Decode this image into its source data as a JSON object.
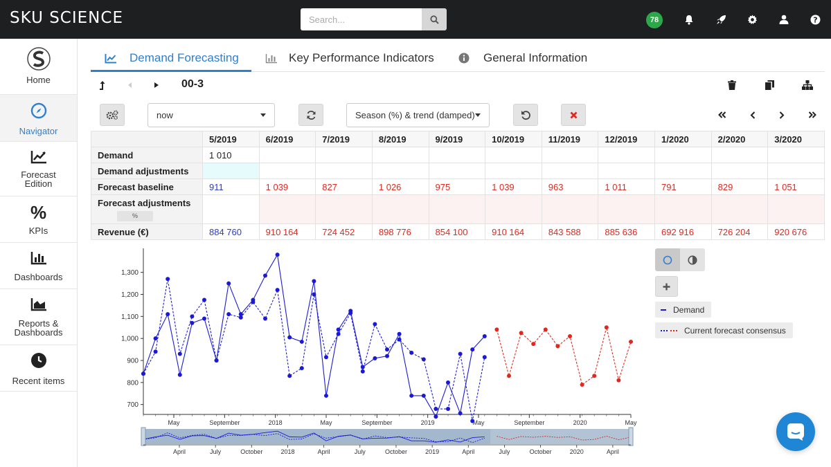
{
  "app": {
    "logo": "SKU SCIENCE",
    "search_placeholder": "Search...",
    "notification_count": "78"
  },
  "sidebar": {
    "items": [
      {
        "label": "Home",
        "icon": "logo-icon"
      },
      {
        "label": "Navigator",
        "icon": "compass-icon"
      },
      {
        "label": "Forecast Edition",
        "icon": "chart-line-icon"
      },
      {
        "label": "KPIs",
        "icon": "percent-icon"
      },
      {
        "label": "Dashboards",
        "icon": "bar-chart-icon"
      },
      {
        "label": "Reports & Dashboards",
        "icon": "area-chart-icon"
      },
      {
        "label": "Recent items",
        "icon": "clock-icon"
      }
    ]
  },
  "tabs": [
    {
      "label": "Demand Forecasting",
      "active": true
    },
    {
      "label": "Key Performance Indicators",
      "active": false
    },
    {
      "label": "General Information",
      "active": false
    }
  ],
  "item_code": "00-3",
  "controls": {
    "period_select": "now",
    "model_select": "Season (%) & trend (damped)"
  },
  "table": {
    "months": [
      "5/2019",
      "6/2019",
      "7/2019",
      "8/2019",
      "9/2019",
      "10/2019",
      "11/2019",
      "12/2019",
      "1/2020",
      "2/2020",
      "3/2020"
    ],
    "rows": {
      "demand": {
        "label": "Demand",
        "values": [
          "1 010",
          "",
          "",
          "",
          "",
          "",
          "",
          "",
          "",
          "",
          ""
        ]
      },
      "demand_adjustments": {
        "label": "Demand adjustments"
      },
      "forecast_baseline": {
        "label": "Forecast baseline",
        "values": [
          "911",
          "1 039",
          "827",
          "1 026",
          "975",
          "1 039",
          "963",
          "1 011",
          "791",
          "829",
          "1 051"
        ]
      },
      "forecast_adjustments": {
        "label": "Forecast adjustments",
        "chip": "%"
      },
      "revenue": {
        "label": "Revenue (€)",
        "values": [
          "884 760",
          "910 164",
          "724 452",
          "898 776",
          "854 100",
          "910 164",
          "843 588",
          "885 636",
          "692 916",
          "726 204",
          "920 676"
        ]
      }
    }
  },
  "legend": {
    "demand": "Demand",
    "consensus": "Current forecast consensus"
  },
  "colors": {
    "accent": "#2f7fd1",
    "demand": "#1a1ad6",
    "forecast": "#e2281e",
    "badge": "#2ca84a"
  },
  "chart_data": {
    "type": "line",
    "y_ticks": [
      "700",
      "800",
      "900",
      "1,000",
      "1,100",
      "1,200",
      "1,300"
    ],
    "ylim": [
      655,
      1390
    ],
    "x_labels": [
      "May",
      "September",
      "2018",
      "May",
      "September",
      "2019",
      "May",
      "September",
      "2020",
      "May"
    ],
    "nav_x_labels": [
      "April",
      "July",
      "October",
      "2018",
      "April",
      "July",
      "October",
      "2019",
      "April",
      "July",
      "October",
      "2020",
      "April"
    ],
    "series": [
      {
        "name": "Demand",
        "style": "solid",
        "color": "#1a1ad6",
        "x": [
          0,
          1,
          2,
          3,
          4,
          5,
          6,
          7,
          8,
          9,
          10,
          11,
          12,
          13,
          14,
          15,
          16,
          17,
          18,
          19,
          20,
          21,
          22,
          23,
          24,
          25,
          26,
          27,
          28,
          29,
          30
        ],
        "values": [
          840,
          1000,
          1110,
          835,
          1070,
          1090,
          900,
          1250,
          1110,
          1175,
          1285,
          1380,
          1005,
          985,
          1260,
          740,
          1040,
          1125,
          870,
          910,
          920,
          1020,
          740,
          740,
          645,
          800,
          660,
          950,
          1010,
          null,
          null
        ]
      },
      {
        "name": "Current forecast consensus",
        "style": "dashed",
        "color": "#1a1ad6",
        "x": [
          0,
          1,
          2,
          3,
          4,
          5,
          6,
          7,
          8,
          9,
          10,
          11,
          12,
          13,
          14,
          15,
          16,
          17,
          18,
          19,
          20,
          21,
          22,
          23,
          24,
          25,
          26,
          27,
          28
        ],
        "values": [
          840,
          940,
          1270,
          930,
          1100,
          1175,
          900,
          1110,
          1095,
          1165,
          1090,
          1220,
          830,
          865,
          1200,
          915,
          1020,
          1115,
          850,
          1065,
          950,
          995,
          935,
          905,
          680,
          680,
          930,
          625,
          915
        ]
      },
      {
        "name": "Current forecast consensus",
        "style": "dashed",
        "color": "#e2281e",
        "x": [
          29,
          30,
          31,
          32,
          33,
          34,
          35,
          36,
          37,
          38,
          39,
          40
        ],
        "values": [
          1040,
          830,
          1025,
          975,
          1040,
          965,
          1010,
          790,
          830,
          1050,
          810,
          985
        ]
      }
    ]
  }
}
